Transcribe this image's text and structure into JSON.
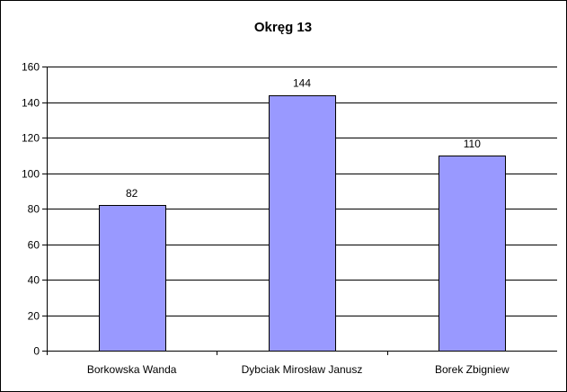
{
  "chart_data": {
    "type": "bar",
    "title": "Okręg 13",
    "categories": [
      "Borkowska Wanda",
      "Dybciak Mirosław Janusz",
      "Borek Zbigniew"
    ],
    "values": [
      82,
      144,
      110
    ],
    "ylim": [
      0,
      160
    ],
    "yticks": [
      0,
      20,
      40,
      60,
      80,
      100,
      120,
      140,
      160
    ],
    "xlabel": "",
    "ylabel": "",
    "grid": true,
    "legend": "none",
    "colors": {
      "bar_fill": "#9999ff",
      "bar_stroke": "#000000",
      "grid": "#000000",
      "background": "#ffffff"
    }
  }
}
